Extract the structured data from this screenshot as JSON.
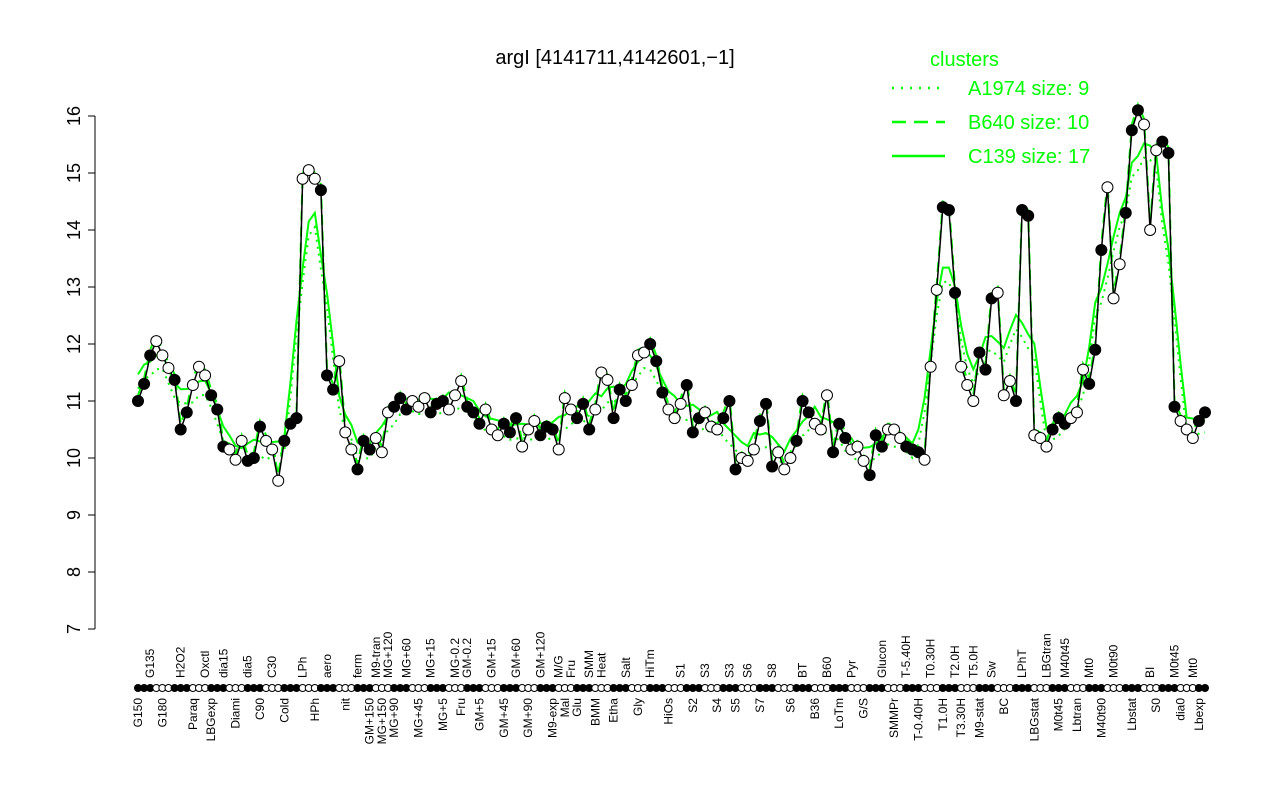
{
  "chart_data": {
    "type": "line",
    "title": "argI [4141711,4142601,−1]",
    "ylim": [
      7,
      16
    ],
    "yticks": [
      7,
      8,
      9,
      10,
      11,
      12,
      13,
      14,
      15,
      16
    ],
    "grid": false,
    "legend": {
      "title": "clusters",
      "placement": "top-right",
      "color": "#00ff00",
      "entries": [
        {
          "name": "A1974 size: 9",
          "style": "dotted"
        },
        {
          "name": "B640 size: 10",
          "style": "dashed"
        },
        {
          "name": "C139 size: 17",
          "style": "solid"
        }
      ]
    },
    "points": [
      [
        "G150",
        11.0
      ],
      [
        "",
        11.3
      ],
      [
        "G135",
        11.8
      ],
      [
        "",
        12.05
      ],
      [
        "G180",
        11.8
      ],
      [
        "",
        11.58
      ],
      [
        "",
        11.37
      ],
      [
        "H2O2",
        10.5
      ],
      [
        "",
        10.8
      ],
      [
        "Paraq",
        11.28
      ],
      [
        "",
        11.6
      ],
      [
        "Oxctl",
        11.45
      ],
      [
        "LBGexp",
        11.1
      ],
      [
        "",
        10.85
      ],
      [
        "dia15",
        10.2
      ],
      [
        "",
        10.15
      ],
      [
        "Diami",
        9.97
      ],
      [
        "",
        10.3
      ],
      [
        "dia5",
        9.95
      ],
      [
        "",
        10.0
      ],
      [
        "C90",
        10.55
      ],
      [
        "",
        10.3
      ],
      [
        "C30",
        10.15
      ],
      [
        "",
        9.6
      ],
      [
        "Cold",
        10.3
      ],
      [
        "",
        10.6
      ],
      [
        "",
        10.7
      ],
      [
        "LPh",
        14.9
      ],
      [
        "",
        15.05
      ],
      [
        "HPh",
        14.9
      ],
      [
        "",
        14.7
      ],
      [
        "aero",
        11.45
      ],
      [
        "",
        11.2
      ],
      [
        "",
        11.7
      ],
      [
        "nit",
        10.45
      ],
      [
        "",
        10.15
      ],
      [
        "ferm",
        9.8
      ],
      [
        "",
        10.3
      ],
      [
        "GM+150",
        10.15
      ],
      [
        "M9-tran",
        10.35
      ],
      [
        "MG+150",
        10.1
      ],
      [
        "MG+120",
        10.8
      ],
      [
        "MG+90",
        10.9
      ],
      [
        "",
        11.05
      ],
      [
        "MG+60",
        10.85
      ],
      [
        "",
        11.0
      ],
      [
        "MG+45",
        10.9
      ],
      [
        "",
        11.05
      ],
      [
        "MG+15",
        10.8
      ],
      [
        "",
        10.95
      ],
      [
        "MG+5",
        11.0
      ],
      [
        "",
        10.85
      ],
      [
        "MG-0.2",
        11.1
      ],
      [
        "Fru",
        11.35
      ],
      [
        "GM-0.2",
        10.9
      ],
      [
        "",
        10.8
      ],
      [
        "GM+5",
        10.6
      ],
      [
        "",
        10.85
      ],
      [
        "GM+15",
        10.5
      ],
      [
        "",
        10.4
      ],
      [
        "GM+45",
        10.6
      ],
      [
        "",
        10.45
      ],
      [
        "GM+60",
        10.7
      ],
      [
        "",
        10.2
      ],
      [
        "GM+90",
        10.5
      ],
      [
        "",
        10.65
      ],
      [
        "GM+120",
        10.4
      ],
      [
        "",
        10.55
      ],
      [
        "M9-exp",
        10.5
      ],
      [
        "M/G",
        10.15
      ],
      [
        "Mal",
        11.05
      ],
      [
        "Fru",
        10.85
      ],
      [
        "Glu",
        10.7
      ],
      [
        "",
        10.95
      ],
      [
        "SMM",
        10.5
      ],
      [
        "BMM",
        10.85
      ],
      [
        "Heat",
        11.5
      ],
      [
        "",
        11.37
      ],
      [
        "Etha",
        10.7
      ],
      [
        "",
        11.2
      ],
      [
        "Salt",
        11.0
      ],
      [
        "",
        11.28
      ],
      [
        "Gly",
        11.8
      ],
      [
        "",
        11.85
      ],
      [
        "HiTm",
        12.0
      ],
      [
        "",
        11.7
      ],
      [
        "",
        11.15
      ],
      [
        "HiOs",
        10.85
      ],
      [
        "",
        10.7
      ],
      [
        "S1",
        10.95
      ],
      [
        "",
        11.28
      ],
      [
        "S2",
        10.45
      ],
      [
        "",
        10.7
      ],
      [
        "S3",
        10.8
      ],
      [
        "",
        10.55
      ],
      [
        "S4",
        10.5
      ],
      [
        "",
        10.7
      ],
      [
        "S3",
        11.0
      ],
      [
        "S5",
        9.8
      ],
      [
        "",
        10.0
      ],
      [
        "S6",
        9.95
      ],
      [
        "",
        10.15
      ],
      [
        "S7",
        10.65
      ],
      [
        "",
        10.95
      ],
      [
        "S8",
        9.85
      ],
      [
        "",
        10.1
      ],
      [
        "",
        9.8
      ],
      [
        "S6",
        10.0
      ],
      [
        "",
        10.3
      ],
      [
        "BT",
        11.0
      ],
      [
        "",
        10.8
      ],
      [
        "B36",
        10.6
      ],
      [
        "",
        10.5
      ],
      [
        "B60",
        11.1
      ],
      [
        "",
        10.1
      ],
      [
        "LoTm",
        10.6
      ],
      [
        "",
        10.35
      ],
      [
        "Pyr",
        10.15
      ],
      [
        "",
        10.2
      ],
      [
        "G/S",
        9.95
      ],
      [
        "",
        9.7
      ],
      [
        "",
        10.4
      ],
      [
        "Glucon",
        10.2
      ],
      [
        "",
        10.5
      ],
      [
        "SMMPr",
        10.5
      ],
      [
        "",
        10.35
      ],
      [
        "T-5.40H",
        10.2
      ],
      [
        "",
        10.15
      ],
      [
        "T-0.40H",
        10.1
      ],
      [
        "",
        9.97
      ],
      [
        "T0.30H",
        11.6
      ],
      [
        "",
        12.95
      ],
      [
        "T1.0H",
        14.4
      ],
      [
        "",
        14.35
      ],
      [
        "T2.0H",
        12.9
      ],
      [
        "T3.30H",
        11.6
      ],
      [
        "",
        11.28
      ],
      [
        "T5.0H",
        11.0
      ],
      [
        "M9-stat",
        11.85
      ],
      [
        "",
        11.55
      ],
      [
        "Sw",
        12.8
      ],
      [
        "",
        12.9
      ],
      [
        "BC",
        11.1
      ],
      [
        "",
        11.35
      ],
      [
        "",
        11.0
      ],
      [
        "LPhT",
        14.35
      ],
      [
        "",
        14.25
      ],
      [
        "LBGstat",
        10.4
      ],
      [
        "",
        10.35
      ],
      [
        "LBGtran",
        10.2
      ],
      [
        "",
        10.5
      ],
      [
        "M0t45",
        10.7
      ],
      [
        "M40t45",
        10.6
      ],
      [
        "",
        10.7
      ],
      [
        "Lbtran",
        10.8
      ],
      [
        "",
        11.55
      ],
      [
        "Mt0",
        11.3
      ],
      [
        "",
        11.9
      ],
      [
        "M40t90",
        13.65
      ],
      [
        "",
        14.75
      ],
      [
        "M0t90",
        12.8
      ],
      [
        "",
        13.4
      ],
      [
        "",
        14.3
      ],
      [
        "Lbstat",
        15.75
      ],
      [
        "",
        16.1
      ],
      [
        "",
        15.85
      ],
      [
        "BI",
        14.0
      ],
      [
        "S0",
        15.4
      ],
      [
        "",
        15.55
      ],
      [
        "",
        15.35
      ],
      [
        "M0t45",
        10.9
      ],
      [
        "dia0",
        10.65
      ],
      [
        "",
        10.5
      ],
      [
        "Mt0",
        10.35
      ],
      [
        "Lbexp",
        10.65
      ],
      [
        "",
        10.8
      ]
    ]
  }
}
